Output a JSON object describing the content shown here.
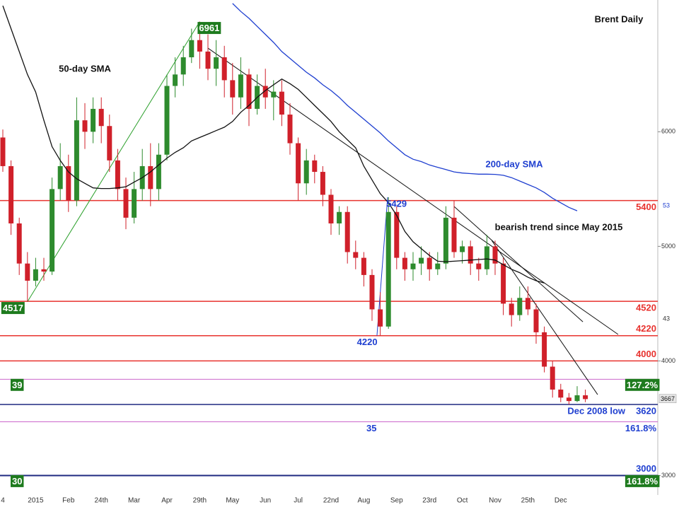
{
  "chart_data": {
    "type": "candlestick",
    "title": "Brent Daily",
    "annotation": "bearish trend since May 2015",
    "categories": [
      "4",
      null,
      null,
      null,
      "2015",
      null,
      null,
      null,
      "Feb",
      null,
      null,
      null,
      "24th",
      null,
      null,
      null,
      "Mar",
      null,
      null,
      null,
      "Apr",
      null,
      null,
      null,
      "29th",
      null,
      null,
      null,
      "May",
      null,
      null,
      null,
      "Jun",
      null,
      null,
      null,
      "Jul",
      null,
      null,
      null,
      "22nd",
      null,
      null,
      null,
      "Aug",
      null,
      null,
      null,
      "Sep",
      null,
      null,
      null,
      "23rd",
      null,
      null,
      null,
      "Oct",
      null,
      null,
      null,
      "Nov",
      null,
      null,
      null,
      "25th",
      null,
      null,
      null,
      "Dec",
      null,
      null,
      null
    ],
    "open": [
      5950,
      5700,
      5200,
      4850,
      4700,
      4800,
      4780,
      5500,
      5700,
      5400,
      6100,
      6000,
      6200,
      6050,
      5750,
      5500,
      5250,
      5500,
      5700,
      5500,
      5800,
      6400,
      6500,
      6650,
      6800,
      6700,
      6550,
      6650,
      6450,
      6300,
      6500,
      6200,
      6400,
      6300,
      6350,
      6150,
      5900,
      5550,
      5750,
      5650,
      5450,
      5200,
      5300,
      4950,
      4900,
      4750,
      4450,
      4300,
      5300,
      4900,
      4800,
      4850,
      4900,
      4800,
      4850,
      5250,
      4950,
      5000,
      4850,
      4800,
      5000,
      4850,
      4500,
      4400,
      4550,
      4450,
      4250,
      3950,
      3750,
      3680,
      3650,
      3700
    ],
    "high": [
      6020,
      5750,
      5250,
      4950,
      4900,
      4900,
      5600,
      5900,
      5800,
      6300,
      6250,
      6300,
      6300,
      6150,
      5850,
      5600,
      5650,
      5850,
      5900,
      5900,
      6500,
      6650,
      6750,
      6900,
      6961,
      6850,
      6800,
      6750,
      6600,
      6650,
      6550,
      6500,
      6550,
      6450,
      6450,
      6250,
      5950,
      5850,
      5800,
      5700,
      5500,
      5350,
      5350,
      5050,
      4950,
      4800,
      4600,
      5429,
      5350,
      4950,
      4950,
      5000,
      4950,
      4950,
      5350,
      5400,
      5050,
      5050,
      4900,
      5100,
      5050,
      4900,
      4550,
      4650,
      4650,
      4500,
      4300,
      4000,
      3800,
      3720,
      3780,
      3750
    ],
    "low": [
      5650,
      5100,
      4750,
      4517,
      4650,
      4700,
      4750,
      5400,
      5300,
      5350,
      5850,
      5900,
      5900,
      5650,
      5400,
      5150,
      5200,
      5400,
      5350,
      5400,
      5750,
      6300,
      6400,
      6600,
      6550,
      6450,
      6400,
      6300,
      6150,
      6200,
      6050,
      6150,
      6200,
      6100,
      6050,
      5800,
      5400,
      5450,
      5550,
      5350,
      5100,
      5100,
      4850,
      4800,
      4650,
      4350,
      4220,
      4280,
      4800,
      4700,
      4700,
      4750,
      4700,
      4750,
      4800,
      4900,
      4850,
      4750,
      4700,
      4750,
      4750,
      4400,
      4300,
      4350,
      4400,
      4150,
      3900,
      3680,
      3640,
      3620,
      3640,
      3640
    ],
    "close": [
      5700,
      5200,
      4850,
      4700,
      4800,
      4780,
      5500,
      5700,
      5400,
      6100,
      6000,
      6200,
      6050,
      5750,
      5500,
      5250,
      5500,
      5700,
      5500,
      5800,
      6400,
      6500,
      6650,
      6800,
      6700,
      6550,
      6650,
      6450,
      6300,
      6500,
      6200,
      6400,
      6300,
      6350,
      6150,
      5900,
      5550,
      5750,
      5650,
      5450,
      5200,
      5300,
      4950,
      4900,
      4750,
      4450,
      4300,
      5300,
      4900,
      4800,
      4850,
      4900,
      4800,
      4850,
      5250,
      4950,
      5000,
      4850,
      4800,
      5000,
      4850,
      4500,
      4400,
      4550,
      4450,
      4250,
      3950,
      3750,
      3680,
      3650,
      3700,
      3667
    ],
    "up_color": "#2e8b2e",
    "down_color": "#d0202a",
    "series": [
      {
        "name": "50-day SMA",
        "color": "#111111",
        "values": [
          7100,
          6900,
          6700,
          6500,
          6347,
          6100,
          5870,
          5750,
          5650,
          5590,
          5550,
          5510,
          5505,
          5505,
          5510,
          5520,
          5560,
          5600,
          5650,
          5710,
          5770,
          5820,
          5860,
          5920,
          5950,
          5980,
          6010,
          6040,
          6090,
          6170,
          6230,
          6300,
          6360,
          6410,
          6460,
          6420,
          6370,
          6300,
          6230,
          6160,
          6090,
          6000,
          5930,
          5860,
          5700,
          5580,
          5460,
          5380,
          5270,
          5130,
          5040,
          4980,
          4920,
          4870,
          4866,
          4870,
          4875,
          4880,
          4885,
          4890,
          4880,
          4840,
          4800,
          4770,
          4730,
          4700,
          4680,
          null,
          null,
          null,
          null,
          null
        ]
      },
      {
        "name": "200-day SMA",
        "color": "#1f3fd0",
        "values": [
          null,
          null,
          null,
          null,
          null,
          null,
          null,
          null,
          null,
          null,
          null,
          null,
          null,
          null,
          null,
          null,
          null,
          null,
          null,
          null,
          null,
          null,
          null,
          null,
          null,
          null,
          null,
          null,
          7120,
          7050,
          6990,
          6920,
          6850,
          6780,
          6700,
          6640,
          6580,
          6520,
          6470,
          6410,
          6360,
          6300,
          6230,
          6170,
          6110,
          6050,
          5990,
          5920,
          5860,
          5800,
          5760,
          5740,
          5710,
          5690,
          5670,
          5650,
          5640,
          5635,
          5630,
          5630,
          5628,
          5620,
          5600,
          5570,
          5540,
          5510,
          5470,
          5420,
          5380,
          5340,
          5310,
          null
        ]
      }
    ],
    "trendlines": [
      {
        "color": "#2ca02c",
        "x": [
          3,
          24
        ],
        "values": [
          4517,
          6961
        ]
      },
      {
        "color": "#111111",
        "x": [
          25,
          75
        ],
        "values": [
          6730,
          4231
        ]
      },
      {
        "color": "#111111",
        "x": [
          55,
          70.7
        ],
        "values": [
          5348,
          4341
        ]
      },
      {
        "color": "#111111",
        "x": [
          59.6,
          72.5
        ],
        "values": [
          5050,
          3706
        ]
      },
      {
        "color": "#1f3fd0",
        "x": [
          45.6,
          46.9
        ],
        "values": [
          4220,
          5429
        ]
      }
    ],
    "point_labels": [
      {
        "value": 6961,
        "x": 24,
        "style": "box",
        "align": "start"
      },
      {
        "value": 4517,
        "x": 3,
        "style": "box",
        "align": "end"
      },
      {
        "value": 5429,
        "x": 47,
        "style": "text",
        "align": "start"
      },
      {
        "value": 4220,
        "x": 46,
        "style": "text",
        "align": "end"
      }
    ],
    "levels": [
      {
        "value": 5400,
        "color": "#e8332f",
        "width": 1.5,
        "label": "5400",
        "label_side": "below"
      },
      {
        "value": 4520,
        "color": "#e8332f",
        "width": 1.5,
        "label": "4520",
        "label_side": "below"
      },
      {
        "value": 4220,
        "color": "#e8332f",
        "width": 1.5,
        "label": "4220",
        "label_side": "above"
      },
      {
        "value": 4000,
        "color": "#e8332f",
        "width": 1.5,
        "label": "4000",
        "label_side": "above"
      },
      {
        "value": 3840,
        "color": "#cc66cc",
        "width": 1,
        "box": "127.2%",
        "left": "39",
        "left_style": "box"
      },
      {
        "value": 3620,
        "color": "#1f2a80",
        "width": 1.5,
        "label": "3620",
        "label_side": "below",
        "text_color": "#1f3fd0",
        "note": "Dec 2008 low"
      },
      {
        "value": 3469,
        "color": "#cc66cc",
        "width": 1,
        "label": "161.8%",
        "label_side": "below",
        "text_color": "#1f3fd0",
        "left": "35",
        "left_style": "text"
      },
      {
        "value": 3000,
        "color": "#1f2a80",
        "width": 2,
        "label": "3000",
        "label_side": "above",
        "text_color": "#1f3fd0",
        "box": "161.8%",
        "left": "30",
        "left_style": "box"
      }
    ],
    "axis_notes": [
      "53",
      "43"
    ],
    "ylim": [
      2830,
      7150
    ],
    "yticks": [
      3000,
      4000,
      5000,
      6000
    ],
    "grid": false
  }
}
